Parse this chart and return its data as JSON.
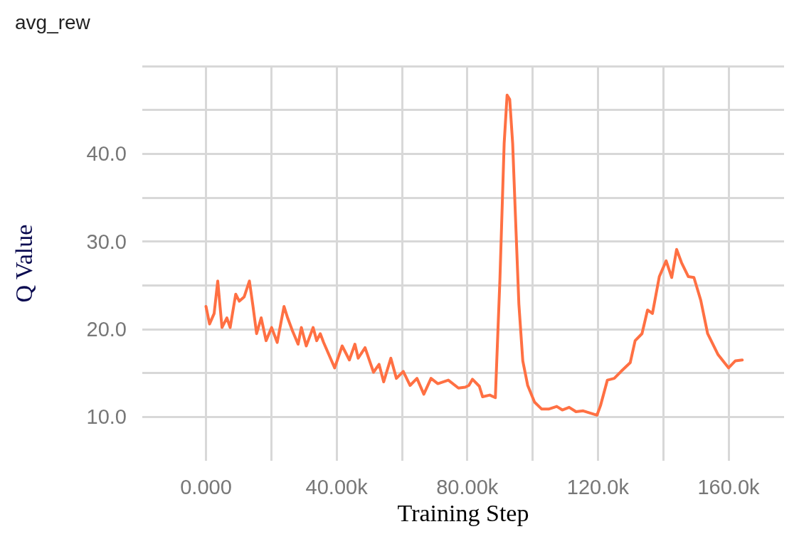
{
  "chart_data": {
    "type": "line",
    "title": "avg_rew",
    "xlabel": "Training Step",
    "ylabel": "Q Value",
    "x": [
      0,
      1100,
      2500,
      3600,
      4900,
      6400,
      7400,
      9100,
      10200,
      11700,
      13300,
      14400,
      15500,
      16900,
      18400,
      20100,
      21800,
      23900,
      25000,
      26500,
      28200,
      29200,
      30700,
      32800,
      33900,
      35000,
      36000,
      39400,
      41700,
      43900,
      45600,
      46600,
      48700,
      51300,
      53000,
      54400,
      56600,
      58300,
      60400,
      62500,
      64600,
      66700,
      68900,
      71000,
      74200,
      77300,
      79400,
      80500,
      81600,
      83700,
      84700,
      86900,
      88600,
      90000,
      91300,
      92200,
      93000,
      93900,
      94700,
      95800,
      97000,
      98500,
      100600,
      102800,
      104900,
      107400,
      109100,
      111200,
      113300,
      115500,
      119700,
      120800,
      122900,
      125000,
      127100,
      129900,
      131400,
      133500,
      135200,
      136700,
      138800,
      140900,
      142600,
      144100,
      145600,
      147700,
      149400,
      151500,
      153600,
      156800,
      160000,
      162100,
      164200
    ],
    "series": [
      {
        "color": "#ff7043",
        "values": [
          22.6,
          20.6,
          21.8,
          25.5,
          20.2,
          21.3,
          20.2,
          24,
          23.2,
          23.7,
          25.5,
          22.6,
          19.5,
          21.3,
          18.7,
          20.2,
          18.5,
          22.6,
          21.3,
          19.8,
          18.3,
          20.2,
          18.1,
          20.2,
          18.7,
          19.5,
          18.5,
          15.6,
          18.1,
          16.5,
          18.3,
          16.7,
          17.9,
          15.1,
          16,
          14,
          16.7,
          14.4,
          15.2,
          13.6,
          14.4,
          12.6,
          14.4,
          13.8,
          14.2,
          13.3,
          13.4,
          13.6,
          14.3,
          13.5,
          12.3,
          12.5,
          12.2,
          25.7,
          41.2,
          46.7,
          46.2,
          41.2,
          33.4,
          22.9,
          16.4,
          13.6,
          11.7,
          10.9,
          10.9,
          11.2,
          10.8,
          11.1,
          10.6,
          10.7,
          10.2,
          11.3,
          14.2,
          14.4,
          15.2,
          16.2,
          18.7,
          19.5,
          22.2,
          21.8,
          26,
          27.8,
          25.9,
          29.1,
          27.6,
          26,
          25.9,
          23.3,
          19.5,
          17.1,
          15.6,
          16.4,
          16.5
        ]
      }
    ],
    "xlim": [
      -19500,
      177000
    ],
    "ylim": [
      5,
      50
    ],
    "xticks": [
      {
        "value": 0,
        "label": "0.000"
      },
      {
        "value": 20000,
        "label": null
      },
      {
        "value": 40000,
        "label": "40.00k"
      },
      {
        "value": 60000,
        "label": null
      },
      {
        "value": 80000,
        "label": "80.00k"
      },
      {
        "value": 100000,
        "label": null
      },
      {
        "value": 120000,
        "label": "120.0k"
      },
      {
        "value": 140000,
        "label": null
      },
      {
        "value": 160000,
        "label": "160.0k"
      }
    ],
    "yticks": [
      {
        "value": 10,
        "label": "10.0"
      },
      {
        "value": 15,
        "label": null
      },
      {
        "value": 20,
        "label": "20.0"
      },
      {
        "value": 25,
        "label": null
      },
      {
        "value": 30,
        "label": "30.0"
      },
      {
        "value": 35,
        "label": null
      },
      {
        "value": 40,
        "label": "40.0"
      },
      {
        "value": 45,
        "label": null
      },
      {
        "value": 50,
        "label": null
      }
    ],
    "grid": true,
    "marker": "none",
    "line_style": "solid"
  }
}
